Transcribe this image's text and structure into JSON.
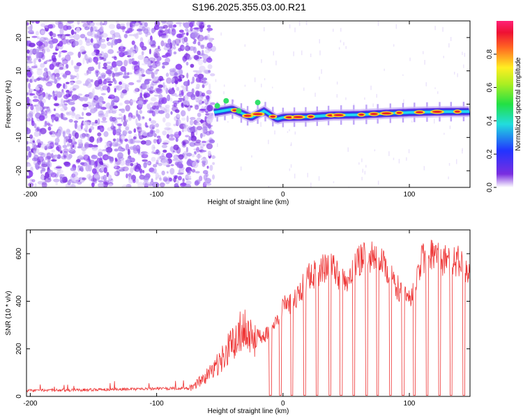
{
  "title": "S196.2025.355.03.00.R21",
  "colors": {
    "snr_line": "#ee3333",
    "axis": "#000000"
  },
  "chart_data": [
    {
      "type": "heatmap",
      "panel": "top",
      "xlabel": "Height of straight line (km)",
      "ylabel": "Frequency (Hz)",
      "xlim": [
        -203,
        148
      ],
      "ylim": [
        -25,
        25
      ],
      "xticks": [
        -200,
        -100,
        0,
        100
      ],
      "yticks": [
        20,
        10,
        0,
        -10,
        -20
      ],
      "colorbar": {
        "label": "Normalized spectral amplitude",
        "range": [
          0,
          1
        ],
        "ticks": [
          0.0,
          0.2,
          0.4,
          0.6,
          0.8
        ]
      },
      "noise_region_km": [
        -203,
        -55
      ],
      "signal_track": [
        {
          "x": -55,
          "freq": -2.5
        },
        {
          "x": -40,
          "freq": -1.5
        },
        {
          "x": -25,
          "freq": -4
        },
        {
          "x": -15,
          "freq": -2
        },
        {
          "x": -5,
          "freq": -4.5
        },
        {
          "x": 0,
          "freq": -4
        },
        {
          "x": 20,
          "freq": -3.8
        },
        {
          "x": 40,
          "freq": -3.3
        },
        {
          "x": 60,
          "freq": -3.2
        },
        {
          "x": 80,
          "freq": -2.8
        },
        {
          "x": 100,
          "freq": -2.5
        },
        {
          "x": 120,
          "freq": -2.3
        },
        {
          "x": 148,
          "freq": -2.2
        }
      ]
    },
    {
      "type": "line",
      "panel": "bottom",
      "xlabel": "Height of straight line (km)",
      "ylabel": "SNR (10 * v/v)",
      "xlim": [
        -203,
        148
      ],
      "ylim": [
        0,
        700
      ],
      "xticks": [
        -200,
        -100,
        0,
        100
      ],
      "yticks": [
        0,
        200,
        400,
        600
      ],
      "envelope": [
        {
          "x": -203,
          "snr": 30
        },
        {
          "x": -75,
          "snr": 40
        },
        {
          "x": -65,
          "snr": 90
        },
        {
          "x": -55,
          "snr": 150
        },
        {
          "x": -45,
          "snr": 250
        },
        {
          "x": -30,
          "snr": 400
        },
        {
          "x": -20,
          "snr": 280
        },
        {
          "x": -10,
          "snr": 300
        },
        {
          "x": 0,
          "snr": 420
        },
        {
          "x": 10,
          "snr": 460
        },
        {
          "x": 20,
          "snr": 560
        },
        {
          "x": 30,
          "snr": 600
        },
        {
          "x": 40,
          "snr": 610
        },
        {
          "x": 50,
          "snr": 520
        },
        {
          "x": 60,
          "snr": 640
        },
        {
          "x": 70,
          "snr": 660
        },
        {
          "x": 80,
          "snr": 640
        },
        {
          "x": 90,
          "snr": 520
        },
        {
          "x": 100,
          "snr": 460
        },
        {
          "x": 110,
          "snr": 650
        },
        {
          "x": 120,
          "snr": 670
        },
        {
          "x": 130,
          "snr": 630
        },
        {
          "x": 140,
          "snr": 640
        },
        {
          "x": 148,
          "snr": 560
        }
      ],
      "dropouts_km": [
        -10,
        -2,
        7,
        17,
        27,
        37,
        46,
        56,
        66,
        75,
        85,
        95,
        104,
        114,
        124,
        133,
        143
      ]
    }
  ]
}
